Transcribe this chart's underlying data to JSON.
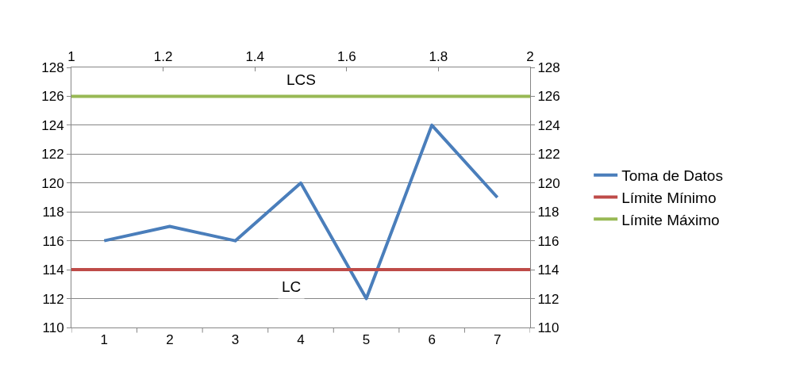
{
  "chart_data": {
    "type": "line",
    "categories": [
      "1",
      "2",
      "3",
      "4",
      "5",
      "6",
      "7"
    ],
    "series": [
      {
        "name": "Toma de Datos",
        "color": "#4a7ebb",
        "values": [
          116,
          117,
          116,
          120,
          112,
          124,
          119
        ]
      }
    ],
    "ref_lines": [
      {
        "axis": "y2",
        "value": 114,
        "label": "Límite Mínimo",
        "color": "#be4b48"
      },
      {
        "axis": "y2",
        "value": 126,
        "label": "Límite Máximo",
        "color": "#98b954"
      }
    ],
    "ylim": [
      110,
      128
    ],
    "yticks": [
      110,
      112,
      114,
      116,
      118,
      120,
      122,
      124,
      126,
      128
    ],
    "y2lim": [
      110,
      128
    ],
    "y2ticks": [
      110,
      112,
      114,
      116,
      118,
      120,
      122,
      124,
      126,
      128
    ],
    "x2lim": [
      1,
      2
    ],
    "x2ticks": [
      1,
      1.2,
      1.4,
      1.6,
      1.8,
      2
    ],
    "annotations": [
      "LCS",
      "LC"
    ],
    "grid": "y",
    "legend": "right",
    "marker": "none",
    "line_style": "solid"
  }
}
